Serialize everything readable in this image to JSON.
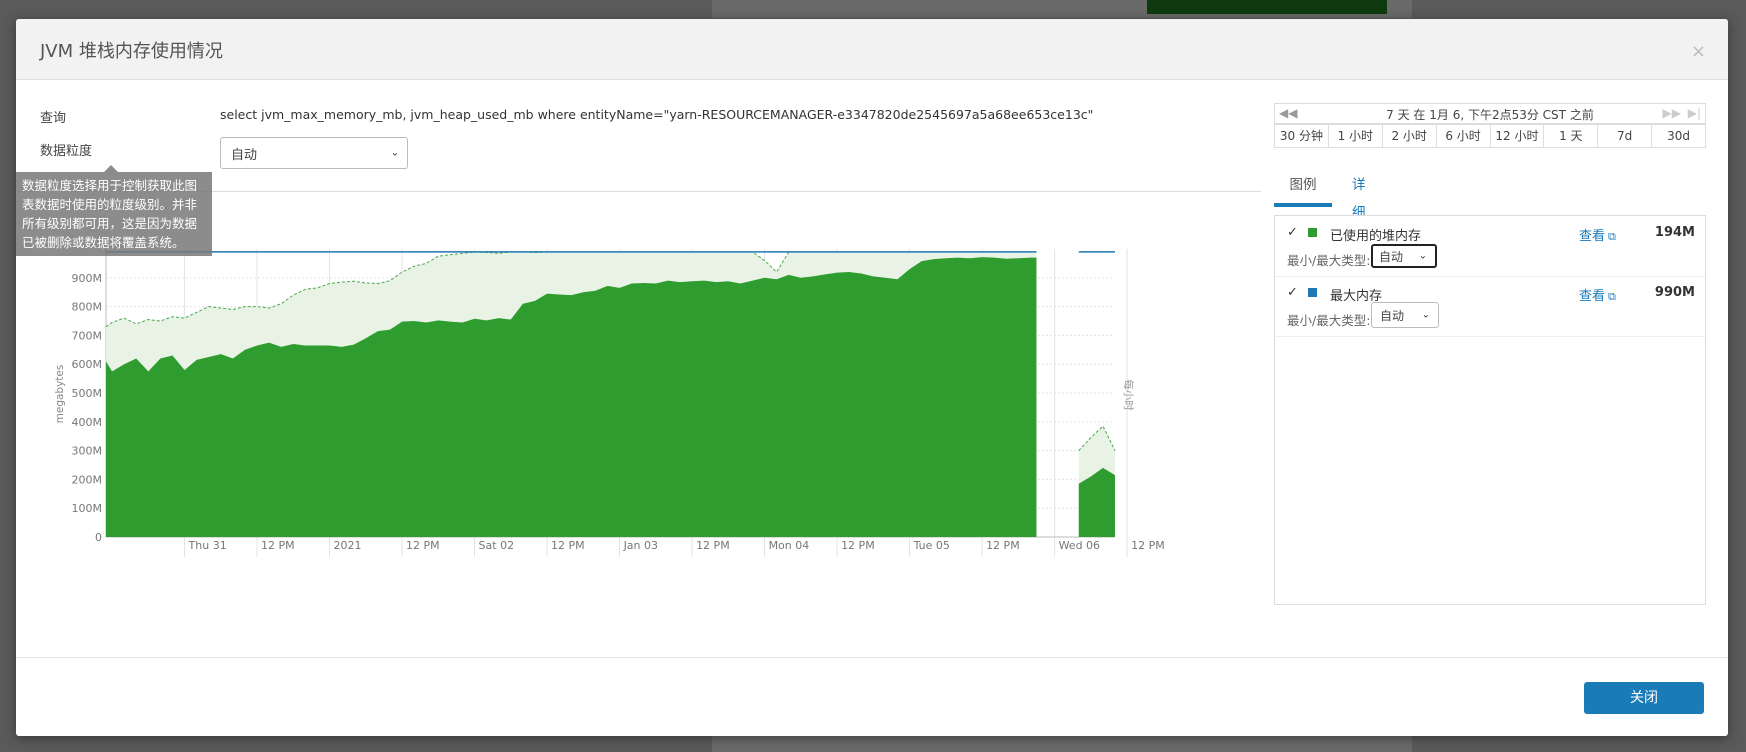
{
  "dialog": {
    "title": "JVM 堆栈内存使用情况",
    "close_glyph": "×",
    "close_button": "关闭"
  },
  "query": {
    "label": "查询",
    "text": "select jvm_max_memory_mb, jvm_heap_used_mb where entityName=\"yarn-RESOURCEMANAGER-e3347820de2545697a5a68ee653ce13c\""
  },
  "granularity": {
    "label": "数据粒度",
    "value": "自动",
    "tooltip_lines": [
      "数据粒度选择用于控制获取此图",
      "表数据时使用的粒度级别。并非",
      "所有级别都可用，这是因为数据",
      "已被删除或数据将覆盖系统。"
    ]
  },
  "time_range": {
    "summary": "7 天 在 1月 6, 下午2点53分 CST 之前",
    "prev_icon": "double-chevron-left-icon",
    "next_icon": "double-chevron-right-icon",
    "options": [
      "30 分钟",
      "1 小时",
      "2 小时",
      "6 小时",
      "12 小时",
      "1 天",
      "7d",
      "30d"
    ]
  },
  "tabs": {
    "legend": "图例",
    "details": "详细信息"
  },
  "legend": {
    "minmax_label": "最小/最大类型:",
    "view_label": "查看",
    "items": [
      {
        "check": "✓",
        "name": "已使用的堆内存",
        "value": "194M",
        "minmax": "自动",
        "color": "#2e9c2e"
      },
      {
        "check": "✓",
        "name": "最大内存",
        "value": "990M",
        "minmax": "自动",
        "color": "#1f77b4"
      }
    ]
  },
  "chart_data": {
    "type": "area",
    "ylabel": "megabytes",
    "right_label": "每小时",
    "ylim": [
      0,
      1000
    ],
    "y_ticks": [
      "0",
      "100M",
      "200M",
      "300M",
      "400M",
      "500M",
      "600M",
      "700M",
      "800M",
      "900M"
    ],
    "x_ticks": [
      "Thu 31",
      "12 PM",
      "2021",
      "12 PM",
      "Sat 02",
      "12 PM",
      "Jan 03",
      "12 PM",
      "Mon 04",
      "12 PM",
      "Tue 05",
      "12 PM",
      "Wed 06",
      "12 PM"
    ],
    "x_range_hours": [
      -13,
      154
    ],
    "series": [
      {
        "name": "已使用的堆内存",
        "color": "#2e9c2e",
        "segments": [
          {
            "x": [
              -13,
              -12,
              -10,
              -8,
              -6,
              -4,
              -2,
              0,
              2,
              4,
              6,
              8,
              10,
              12,
              14,
              16,
              18,
              20,
              22,
              24,
              26,
              28,
              30,
              32,
              34,
              36,
              38,
              40,
              42,
              44,
              46,
              48,
              50,
              52,
              54,
              56,
              58,
              60,
              62,
              64,
              66,
              68,
              70,
              72,
              74,
              76,
              78,
              80,
              82,
              84,
              86,
              88,
              90,
              92,
              94,
              96,
              98,
              100,
              102,
              104,
              106,
              108,
              110,
              112,
              114,
              116,
              118,
              120,
              122,
              124,
              126,
              128,
              130,
              132,
              134,
              136,
              138,
              140,
              141
            ],
            "y": [
              610,
              575,
              600,
              620,
              575,
              620,
              630,
              580,
              615,
              625,
              635,
              620,
              650,
              665,
              675,
              660,
              670,
              665,
              665,
              665,
              660,
              668,
              690,
              715,
              720,
              748,
              750,
              745,
              752,
              748,
              745,
              758,
              752,
              760,
              755,
              810,
              820,
              845,
              842,
              840,
              850,
              855,
              872,
              865,
              880,
              882,
              880,
              890,
              885,
              888,
              890,
              885,
              888,
              880,
              890,
              900,
              895,
              910,
              900,
              905,
              912,
              918,
              920,
              915,
              905,
              900,
              895,
              930,
              958,
              965,
              968,
              970,
              968,
              972,
              970,
              966,
              968,
              970,
              970
            ],
            "max": [
              730,
              745,
              760,
              740,
              755,
              750,
              765,
              760,
              780,
              800,
              795,
              790,
              800,
              800,
              795,
              810,
              840,
              860,
              865,
              880,
              885,
              888,
              882,
              880,
              890,
              920,
              940,
              950,
              975,
              980,
              985,
              990,
              988,
              985,
              990,
              990,
              988,
              990,
              990,
              990,
              990,
              990,
              990,
              990,
              990,
              990,
              990,
              990,
              990,
              990,
              990,
              990,
              990,
              990,
              990,
              960,
              920,
              990,
              990,
              990,
              990,
              990,
              990,
              990,
              990,
              990,
              990,
              990,
              990,
              990,
              990,
              990,
              990,
              990,
              990,
              990,
              990,
              990,
              990
            ]
          },
          {
            "x": [
              148,
              150,
              152,
              154
            ],
            "y": [
              185,
              210,
              240,
              215
            ],
            "max": [
              300,
              345,
              385,
              300
            ]
          }
        ]
      },
      {
        "name": "最大内存",
        "color": "#1f77b4",
        "segments": [
          {
            "x": [
              -13,
              141
            ],
            "y": [
              990,
              990
            ]
          },
          {
            "x": [
              148,
              154
            ],
            "y": [
              990,
              990
            ]
          }
        ]
      }
    ]
  }
}
